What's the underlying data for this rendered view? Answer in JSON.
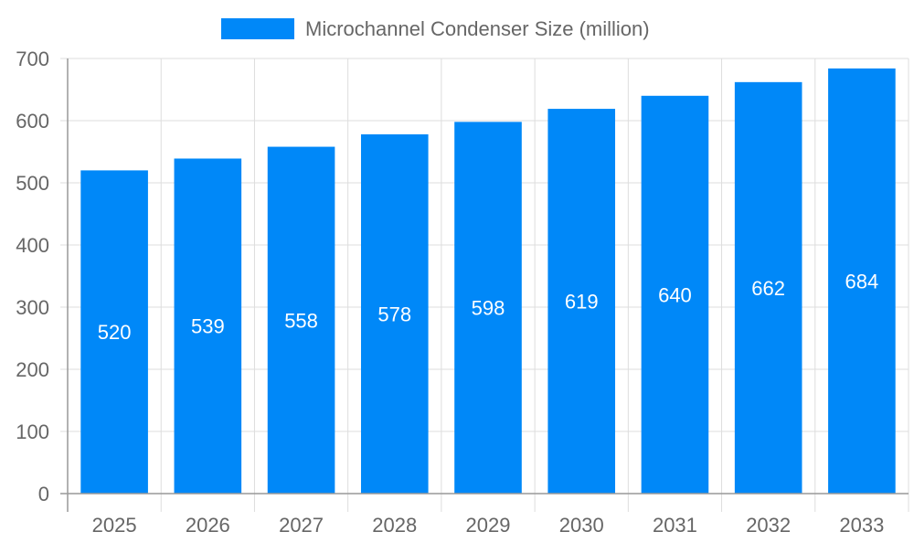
{
  "chart_data": {
    "type": "bar",
    "categories": [
      "2025",
      "2026",
      "2027",
      "2028",
      "2029",
      "2030",
      "2031",
      "2032",
      "2033"
    ],
    "series": [
      {
        "name": "Microchannel Condenser Size (million)",
        "values": [
          520,
          539,
          558,
          578,
          598,
          619,
          640,
          662,
          684
        ]
      }
    ],
    "ylim": [
      0,
      700
    ],
    "yticks": [
      0,
      100,
      200,
      300,
      400,
      500,
      600,
      700
    ],
    "grid": true,
    "legend": "top",
    "data_labels": true,
    "colors": {
      "bar": "#0088F8",
      "grid": "#dddddd",
      "axis": "#999999",
      "text": "#666666",
      "label": "#ffffff"
    }
  }
}
